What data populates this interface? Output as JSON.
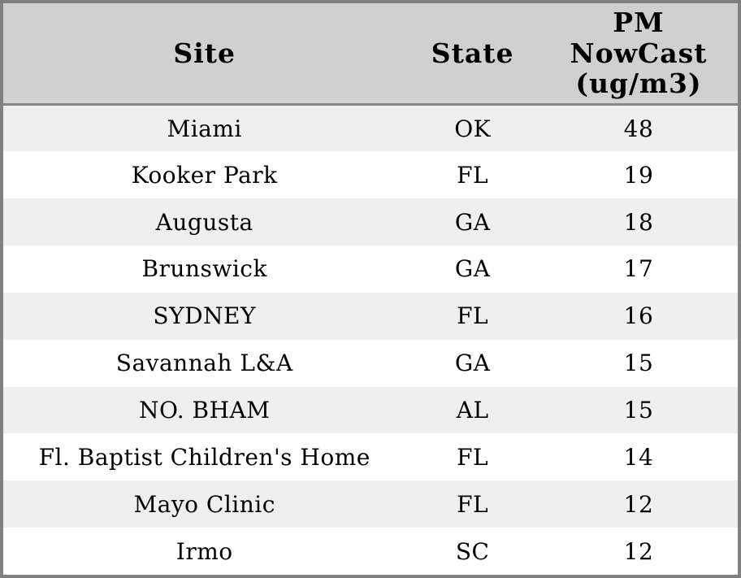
{
  "table": {
    "columns": [
      {
        "id": "site",
        "label": "Site"
      },
      {
        "id": "state",
        "label": "State"
      },
      {
        "id": "pm_nowcast",
        "label": "PM NowCast (ug/m3)",
        "label_lines": [
          "PM",
          "NowCast",
          "(ug/m3)"
        ]
      }
    ],
    "rows": [
      {
        "site": "Miami",
        "state": "OK",
        "pm_nowcast": "48"
      },
      {
        "site": "Kooker Park",
        "state": "FL",
        "pm_nowcast": "19"
      },
      {
        "site": "Augusta",
        "state": "GA",
        "pm_nowcast": "18"
      },
      {
        "site": "Brunswick",
        "state": "GA",
        "pm_nowcast": "17"
      },
      {
        "site": "SYDNEY",
        "state": "FL",
        "pm_nowcast": "16"
      },
      {
        "site": "Savannah L&A",
        "state": "GA",
        "pm_nowcast": "15"
      },
      {
        "site": "NO. BHAM",
        "state": "AL",
        "pm_nowcast": "15"
      },
      {
        "site": "Fl. Baptist Children's Home",
        "state": "FL",
        "pm_nowcast": "14"
      },
      {
        "site": "Mayo Clinic",
        "state": "FL",
        "pm_nowcast": "12"
      },
      {
        "site": "Irmo",
        "state": "SC",
        "pm_nowcast": "12"
      }
    ]
  },
  "chart_data": {
    "type": "table",
    "columns": [
      "Site",
      "State",
      "PM NowCast (ug/m3)"
    ],
    "rows": [
      [
        "Miami",
        "OK",
        48
      ],
      [
        "Kooker Park",
        "FL",
        19
      ],
      [
        "Augusta",
        "GA",
        18
      ],
      [
        "Brunswick",
        "GA",
        17
      ],
      [
        "SYDNEY",
        "FL",
        16
      ],
      [
        "Savannah L&A",
        "GA",
        15
      ],
      [
        "NO. BHAM",
        "AL",
        15
      ],
      [
        "Fl. Baptist Children's Home",
        "FL",
        14
      ],
      [
        "Mayo Clinic",
        "FL",
        12
      ],
      [
        "Irmo",
        "SC",
        12
      ]
    ]
  },
  "colors": {
    "outer_border": "#808080",
    "header_bg": "#d0d0d0",
    "header_separator": "#888888",
    "row_alt_bg": "#efefef",
    "row_bg": "#ffffff",
    "text": "#000000"
  }
}
